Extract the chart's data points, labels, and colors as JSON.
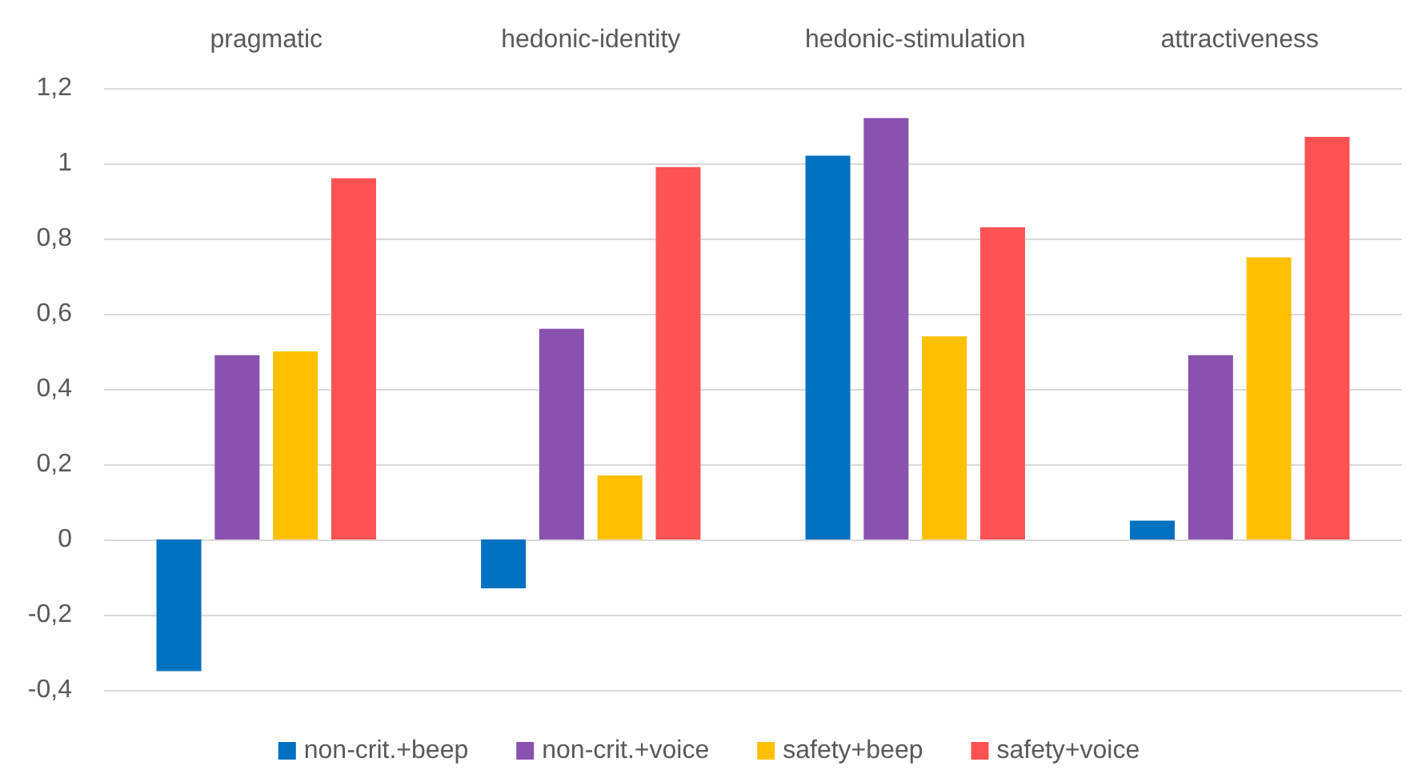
{
  "chart_data": {
    "type": "bar",
    "categories": [
      "pragmatic",
      "hedonic-identity",
      "hedonic-stimulation",
      "attractiveness"
    ],
    "series": [
      {
        "name": "non-crit.+beep",
        "color": "#0070c0",
        "values": [
          -0.35,
          -0.13,
          1.02,
          0.05
        ]
      },
      {
        "name": "non-crit.+voice",
        "color": "#8852ae",
        "values": [
          0.49,
          0.56,
          1.12,
          0.49
        ]
      },
      {
        "name": "safety+beep",
        "color": "#ffc000",
        "values": [
          0.5,
          0.17,
          0.54,
          0.75
        ]
      },
      {
        "name": "safety+voice",
        "color": "#ff5252",
        "values": [
          0.96,
          0.99,
          0.83,
          1.07
        ]
      }
    ],
    "ylim": [
      -0.4,
      1.2
    ],
    "yticks": [
      {
        "value": -0.4,
        "label": "-0,4"
      },
      {
        "value": -0.2,
        "label": "-0,2"
      },
      0,
      {
        "value": 0.2,
        "label": "0,2"
      },
      {
        "value": 0.4,
        "label": "0,4"
      },
      {
        "value": 0.6,
        "label": "0,6"
      },
      {
        "value": 0.8,
        "label": "0,8"
      },
      1,
      {
        "value": 1.2,
        "label": "1,2"
      }
    ],
    "grid": "y",
    "legend": "bottom"
  }
}
